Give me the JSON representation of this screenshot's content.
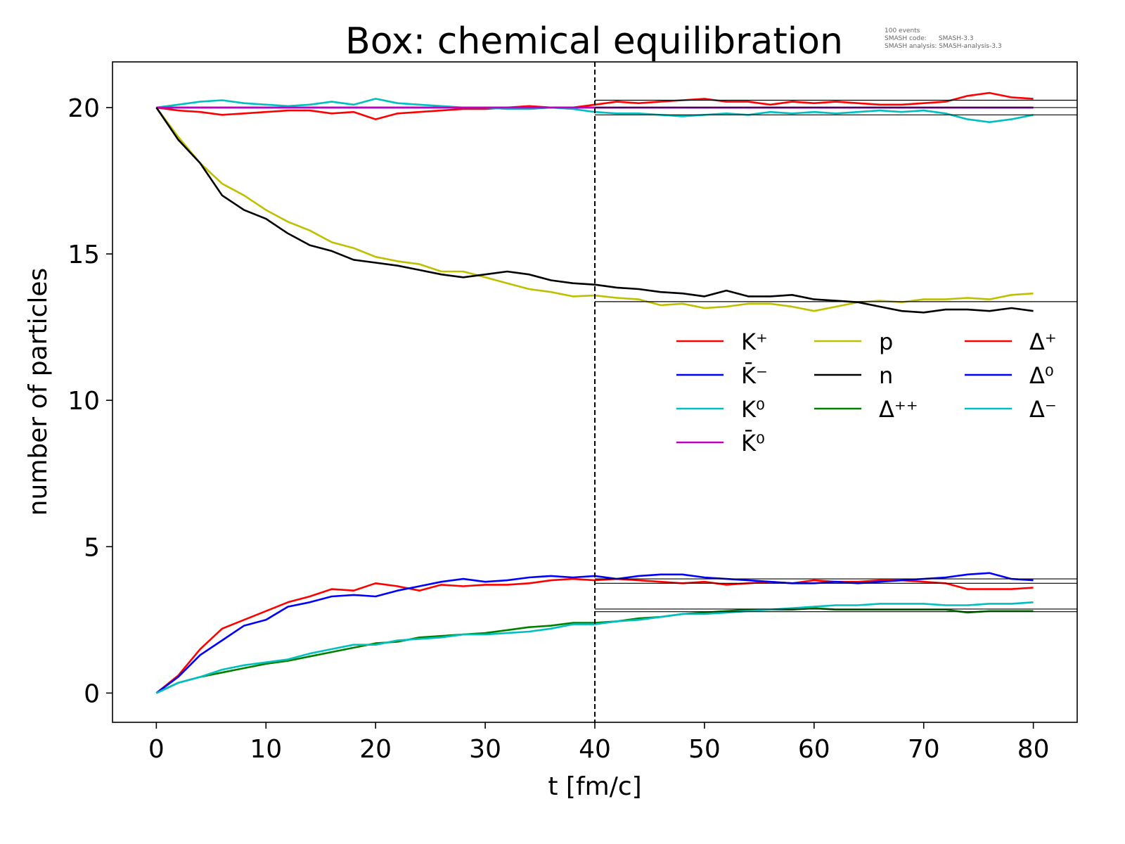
{
  "chart_data": {
    "type": "line",
    "title": "Box: chemical equilibration",
    "info": [
      "100 events",
      "SMASH code:      SMASH-3.3",
      "SMASH analysis: SMASH-analysis-3.3"
    ],
    "xlabel": "t [fm/c]",
    "ylabel": "number of particles",
    "xlim": [
      -4,
      84
    ],
    "ylim": [
      -1,
      21.56
    ],
    "xticks": [
      0,
      10,
      20,
      30,
      40,
      50,
      60,
      70,
      80
    ],
    "yticks": [
      0,
      5,
      10,
      15,
      20
    ],
    "grid": false,
    "legend_placement": "center-right",
    "x": [
      0,
      2,
      4,
      6,
      8,
      10,
      12,
      14,
      16,
      18,
      20,
      22,
      24,
      26,
      28,
      30,
      32,
      34,
      36,
      38,
      40,
      42,
      44,
      46,
      48,
      50,
      52,
      54,
      56,
      58,
      60,
      62,
      64,
      66,
      68,
      70,
      72,
      74,
      76,
      78,
      80
    ],
    "series": [
      {
        "name": "K⁺",
        "color": "#ff0000",
        "values": [
          20,
          19.9,
          19.85,
          19.75,
          19.8,
          19.85,
          19.9,
          19.9,
          19.8,
          19.85,
          19.6,
          19.8,
          19.85,
          19.9,
          19.95,
          19.95,
          20.0,
          20.05,
          20.0,
          20.0,
          20.1,
          20.2,
          20.15,
          20.2,
          20.25,
          20.3,
          20.2,
          20.2,
          20.1,
          20.2,
          20.15,
          20.2,
          20.15,
          20.1,
          20.1,
          20.15,
          20.2,
          20.4,
          20.5,
          20.35,
          20.3
        ]
      },
      {
        "name": "K̄⁻",
        "color": "#0000ff",
        "values": [
          20,
          20,
          20,
          20,
          20,
          20,
          20,
          20,
          20,
          20,
          20,
          20,
          20,
          20,
          20,
          20,
          20,
          20,
          20,
          20,
          20,
          20,
          20,
          20,
          20,
          20,
          20,
          20,
          20,
          20,
          20,
          20,
          20,
          20,
          20,
          20,
          20,
          20,
          20,
          20,
          20
        ]
      },
      {
        "name": "K⁰",
        "color": "#00bfbf",
        "values": [
          20,
          20.1,
          20.2,
          20.25,
          20.15,
          20.1,
          20.05,
          20.1,
          20.2,
          20.1,
          20.3,
          20.15,
          20.1,
          20.05,
          20.0,
          20.0,
          19.95,
          19.95,
          20.0,
          19.95,
          19.85,
          19.8,
          19.8,
          19.75,
          19.7,
          19.75,
          19.8,
          19.75,
          19.85,
          19.8,
          19.85,
          19.8,
          19.85,
          19.9,
          19.85,
          19.9,
          19.8,
          19.6,
          19.5,
          19.6,
          19.75
        ]
      },
      {
        "name": "K̄⁰",
        "color": "#bf00bf",
        "values": [
          20,
          20,
          20,
          20,
          20,
          20,
          20,
          20,
          20,
          20,
          20,
          20,
          20,
          20,
          20,
          20,
          20,
          20,
          20,
          20,
          20,
          20,
          20,
          20,
          20,
          20,
          20,
          20,
          20,
          20,
          20,
          20,
          20,
          20,
          20,
          20,
          20,
          20,
          20,
          20,
          20
        ]
      },
      {
        "name": "p",
        "color": "#bfbf00",
        "values": [
          20,
          19,
          18.1,
          17.4,
          17.0,
          16.5,
          16.1,
          15.8,
          15.4,
          15.2,
          14.9,
          14.75,
          14.65,
          14.4,
          14.4,
          14.2,
          14.0,
          13.8,
          13.7,
          13.55,
          13.58,
          13.5,
          13.45,
          13.25,
          13.3,
          13.15,
          13.2,
          13.3,
          13.3,
          13.2,
          13.05,
          13.2,
          13.35,
          13.4,
          13.35,
          13.45,
          13.45,
          13.5,
          13.45,
          13.6,
          13.65
        ]
      },
      {
        "name": "n",
        "color": "#000000",
        "values": [
          20,
          18.9,
          18.1,
          17.0,
          16.5,
          16.2,
          15.7,
          15.3,
          15.1,
          14.8,
          14.7,
          14.6,
          14.45,
          14.3,
          14.2,
          14.3,
          14.4,
          14.3,
          14.1,
          14.0,
          13.95,
          13.85,
          13.8,
          13.7,
          13.65,
          13.55,
          13.75,
          13.55,
          13.55,
          13.6,
          13.45,
          13.4,
          13.35,
          13.2,
          13.05,
          13.0,
          13.1,
          13.1,
          13.05,
          13.15,
          13.05
        ]
      },
      {
        "name": "Δ⁺⁺",
        "color": "#008000",
        "values": [
          0,
          0.35,
          0.55,
          0.7,
          0.85,
          1.0,
          1.1,
          1.25,
          1.4,
          1.55,
          1.7,
          1.75,
          1.9,
          1.95,
          2.0,
          2.05,
          2.15,
          2.25,
          2.3,
          2.4,
          2.4,
          2.45,
          2.55,
          2.6,
          2.7,
          2.75,
          2.8,
          2.85,
          2.85,
          2.85,
          2.9,
          2.85,
          2.85,
          2.85,
          2.85,
          2.85,
          2.85,
          2.75,
          2.8,
          2.8,
          2.8
        ]
      },
      {
        "name": "Δ⁺",
        "color": "#ff0000",
        "values": [
          0,
          0.6,
          1.5,
          2.2,
          2.5,
          2.8,
          3.1,
          3.3,
          3.55,
          3.5,
          3.75,
          3.65,
          3.5,
          3.7,
          3.65,
          3.7,
          3.7,
          3.75,
          3.85,
          3.9,
          3.85,
          3.9,
          3.85,
          3.8,
          3.75,
          3.8,
          3.7,
          3.75,
          3.8,
          3.75,
          3.85,
          3.8,
          3.8,
          3.85,
          3.85,
          3.8,
          3.75,
          3.55,
          3.55,
          3.55,
          3.6
        ]
      },
      {
        "name": "Δ⁰",
        "color": "#0000ff",
        "values": [
          0,
          0.55,
          1.3,
          1.8,
          2.3,
          2.5,
          2.95,
          3.1,
          3.3,
          3.35,
          3.3,
          3.5,
          3.65,
          3.8,
          3.9,
          3.8,
          3.85,
          3.95,
          4.0,
          3.95,
          4.0,
          3.9,
          4.0,
          4.05,
          4.05,
          3.95,
          3.9,
          3.85,
          3.8,
          3.75,
          3.75,
          3.8,
          3.75,
          3.8,
          3.85,
          3.9,
          3.95,
          4.05,
          4.1,
          3.9,
          3.85
        ]
      },
      {
        "name": "Δ⁻",
        "color": "#00bfbf",
        "values": [
          0,
          0.35,
          0.55,
          0.8,
          0.95,
          1.05,
          1.15,
          1.35,
          1.5,
          1.65,
          1.65,
          1.8,
          1.85,
          1.9,
          2.0,
          2.0,
          2.05,
          2.1,
          2.2,
          2.35,
          2.35,
          2.45,
          2.5,
          2.6,
          2.7,
          2.7,
          2.75,
          2.8,
          2.85,
          2.9,
          2.95,
          3.0,
          3.0,
          3.05,
          3.05,
          3.05,
          3.0,
          3.0,
          3.05,
          3.05,
          3.1
        ]
      }
    ],
    "legend_order": [
      [
        0,
        1,
        2,
        3
      ],
      [
        4,
        5,
        6
      ],
      [
        7,
        8,
        9
      ]
    ],
    "equilibrium_lines": {
      "from_t": 40,
      "values": [
        20.25,
        20.0,
        19.75,
        13.37,
        3.9,
        3.75,
        2.87,
        2.78
      ]
    },
    "vertical_marker_t": 40
  }
}
